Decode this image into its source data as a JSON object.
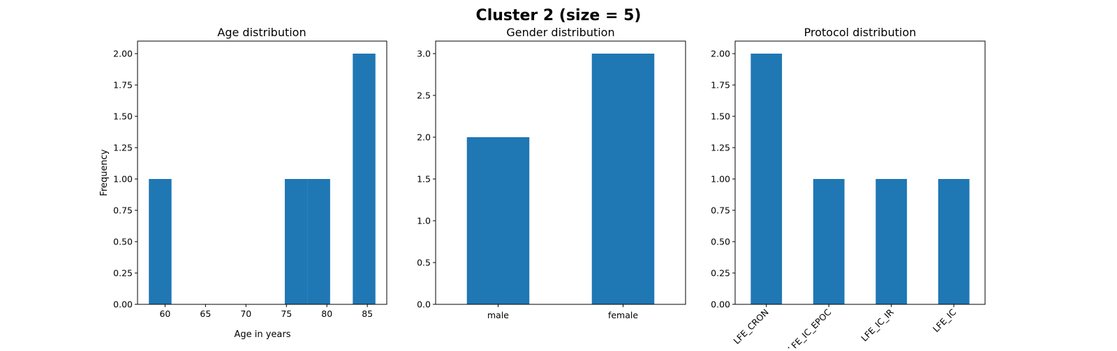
{
  "figure": {
    "title": "Cluster 2 (size = 5)",
    "bar_color": "#1f77b4"
  },
  "chart_data": [
    {
      "type": "bar",
      "title": "Age distribution",
      "xlabel": "Age in years",
      "ylabel": "Frequency",
      "bins": [
        {
          "x0": 58.0,
          "x1": 60.8,
          "value": 1
        },
        {
          "x0": 60.8,
          "x1": 63.6,
          "value": 0
        },
        {
          "x0": 63.6,
          "x1": 66.4,
          "value": 0
        },
        {
          "x0": 66.4,
          "x1": 69.2,
          "value": 0
        },
        {
          "x0": 69.2,
          "x1": 72.0,
          "value": 0
        },
        {
          "x0": 72.0,
          "x1": 74.8,
          "value": 0
        },
        {
          "x0": 74.8,
          "x1": 77.6,
          "value": 1
        },
        {
          "x0": 77.6,
          "x1": 80.4,
          "value": 1
        },
        {
          "x0": 80.4,
          "x1": 83.2,
          "value": 0
        },
        {
          "x0": 83.2,
          "x1": 86.0,
          "value": 2
        }
      ],
      "xlim": [
        56.6,
        87.4
      ],
      "xticks": [
        60,
        65,
        70,
        75,
        80,
        85
      ],
      "ylim": [
        0,
        2.1
      ],
      "yticks": [
        0,
        0.25,
        0.5,
        0.75,
        1.0,
        1.25,
        1.5,
        1.75,
        2.0
      ],
      "ytick_labels": [
        "0.00",
        "0.25",
        "0.50",
        "0.75",
        "1.00",
        "1.25",
        "1.50",
        "1.75",
        "2.00"
      ]
    },
    {
      "type": "bar",
      "title": "Gender distribution",
      "categories": [
        "male",
        "female"
      ],
      "values": [
        2,
        3
      ],
      "ylim": [
        0,
        3.15
      ],
      "yticks": [
        0,
        0.5,
        1.0,
        1.5,
        2.0,
        2.5,
        3.0
      ],
      "ytick_labels": [
        "0.0",
        "0.5",
        "1.0",
        "1.5",
        "2.0",
        "2.5",
        "3.0"
      ]
    },
    {
      "type": "bar",
      "title": "Protocol distribution",
      "categories": [
        "LFE_CRON",
        "LFE_IC_EPOC",
        "LFE_IC_IR",
        "LFE_IC"
      ],
      "values": [
        2,
        1,
        1,
        1
      ],
      "xtick_rotation": 45,
      "ylim": [
        0,
        2.1
      ],
      "yticks": [
        0,
        0.25,
        0.5,
        0.75,
        1.0,
        1.25,
        1.5,
        1.75,
        2.0
      ],
      "ytick_labels": [
        "0.00",
        "0.25",
        "0.50",
        "0.75",
        "1.00",
        "1.25",
        "1.50",
        "1.75",
        "2.00"
      ]
    }
  ]
}
